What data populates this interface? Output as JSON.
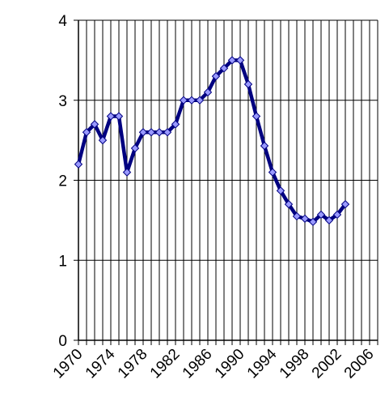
{
  "chart_data": {
    "type": "line",
    "x": [
      1970,
      1971,
      1972,
      1973,
      1974,
      1975,
      1976,
      1977,
      1978,
      1979,
      1980,
      1981,
      1982,
      1983,
      1984,
      1985,
      1986,
      1987,
      1988,
      1989,
      1990,
      1991,
      1992,
      1993,
      1994,
      1995,
      1996,
      1997,
      1998,
      1999,
      2000,
      2001,
      2002,
      2003
    ],
    "series": [
      {
        "color": "#000080",
        "marker_color": "#9999ff",
        "values": [
          2.2,
          2.6,
          2.7,
          2.5,
          2.8,
          2.8,
          2.1,
          2.4,
          2.6,
          2.6,
          2.6,
          2.6,
          2.7,
          3.0,
          3.0,
          3.0,
          3.1,
          3.3,
          3.4,
          3.5,
          3.5,
          3.2,
          2.8,
          2.43,
          2.1,
          1.87,
          1.7,
          1.55,
          1.52,
          1.48,
          1.57,
          1.5,
          1.57,
          1.7
        ]
      }
    ],
    "xlim": [
      1970,
      2007
    ],
    "xticks": [
      1970,
      1974,
      1978,
      1982,
      1986,
      1990,
      1994,
      1998,
      2002,
      2006
    ],
    "xgrid": [
      1970,
      1971,
      1972,
      1973,
      1974,
      1975,
      1976,
      1977,
      1978,
      1979,
      1980,
      1981,
      1982,
      1983,
      1984,
      1985,
      1986,
      1987,
      1988,
      1989,
      1990,
      1991,
      1992,
      1993,
      1994,
      1995,
      1996,
      1997,
      1998,
      1999,
      2000,
      2001,
      2002,
      2003,
      2004,
      2005,
      2006,
      2007
    ],
    "ylim": [
      0,
      4
    ],
    "yticks": [
      0,
      1,
      2,
      3,
      4
    ],
    "grid": true
  }
}
